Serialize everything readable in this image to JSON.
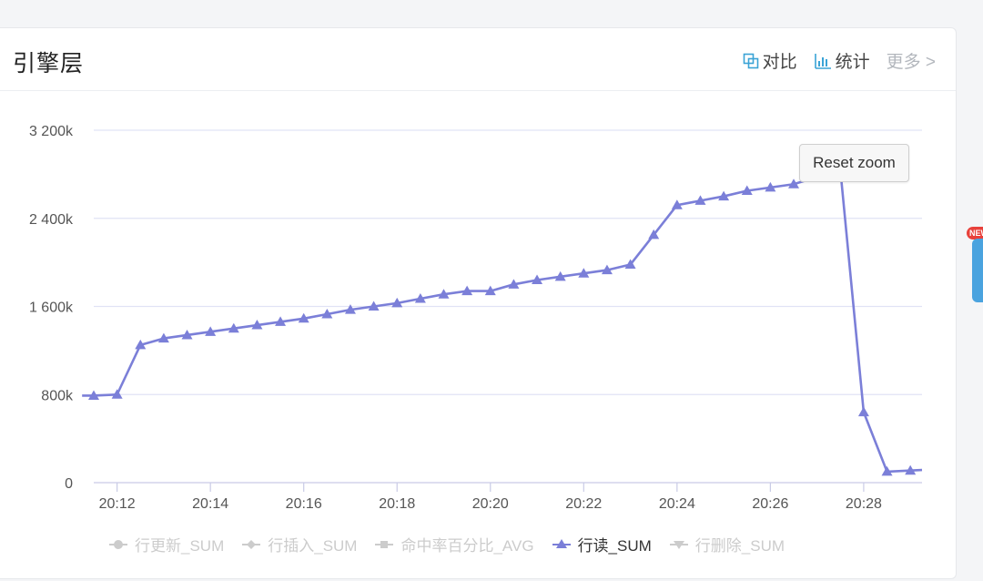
{
  "panel": {
    "title": "引擎层",
    "toolbar": {
      "compare_label": "对比",
      "stats_label": "统计",
      "more_label": "更多 >"
    }
  },
  "side_badge_label": "NEW",
  "reset_zoom_label": "Reset zoom",
  "colors": {
    "series": "#7b7fd8",
    "grid": "#e1e3f5",
    "inactive": "#cccccc",
    "accent": "#3aa3d6"
  },
  "chart_data": {
    "type": "line",
    "title": "",
    "xlabel": "",
    "ylabel": "",
    "xlim": [
      "20:11:30",
      "20:29:15"
    ],
    "ylim": [
      0,
      3200000
    ],
    "y_ticks": [
      0,
      800000,
      1600000,
      2400000,
      3200000
    ],
    "y_tick_labels": [
      "0",
      "800k",
      "1 600k",
      "2 400k",
      "3 200k"
    ],
    "x_ticks": [
      "20:12",
      "20:14",
      "20:16",
      "20:18",
      "20:20",
      "20:22",
      "20:24",
      "20:26",
      "20:28"
    ],
    "grid": true,
    "legend_position": "bottom",
    "legend": [
      {
        "name": "行更新_SUM",
        "marker": "circle",
        "active": false
      },
      {
        "name": "行插入_SUM",
        "marker": "diamond",
        "active": false
      },
      {
        "name": "命中率百分比_AVG",
        "marker": "square",
        "active": false
      },
      {
        "name": "行读_SUM",
        "marker": "triangle",
        "active": true
      },
      {
        "name": "行删除_SUM",
        "marker": "triangle-down",
        "active": false
      }
    ],
    "series": [
      {
        "name": "行读_SUM",
        "x": [
          "20:11:30",
          "20:12:00",
          "20:12:30",
          "20:13:00",
          "20:13:30",
          "20:14:00",
          "20:14:30",
          "20:15:00",
          "20:15:30",
          "20:16:00",
          "20:16:30",
          "20:17:00",
          "20:17:30",
          "20:18:00",
          "20:18:30",
          "20:19:00",
          "20:19:30",
          "20:20:00",
          "20:20:30",
          "20:21:00",
          "20:21:30",
          "20:22:00",
          "20:22:30",
          "20:23:00",
          "20:23:30",
          "20:24:00",
          "20:24:30",
          "20:25:00",
          "20:25:30",
          "20:26:00",
          "20:26:30",
          "20:28:00",
          "20:28:30",
          "20:29:00"
        ],
        "values": [
          790000,
          800000,
          1250000,
          1310000,
          1340000,
          1370000,
          1400000,
          1430000,
          1460000,
          1490000,
          1530000,
          1570000,
          1600000,
          1630000,
          1670000,
          1710000,
          1740000,
          1740000,
          1800000,
          1840000,
          1870000,
          1900000,
          1930000,
          1980000,
          2250000,
          2520000,
          2560000,
          2600000,
          2650000,
          2680000,
          2710000,
          640000,
          100000,
          110000
        ]
      }
    ],
    "segment_before_x": [
      "20:11:15",
      790000
    ],
    "segment_after_x": [
      "20:29:15",
      115000
    ],
    "hidden_peak": [
      "20:27:30",
      2840000
    ]
  }
}
